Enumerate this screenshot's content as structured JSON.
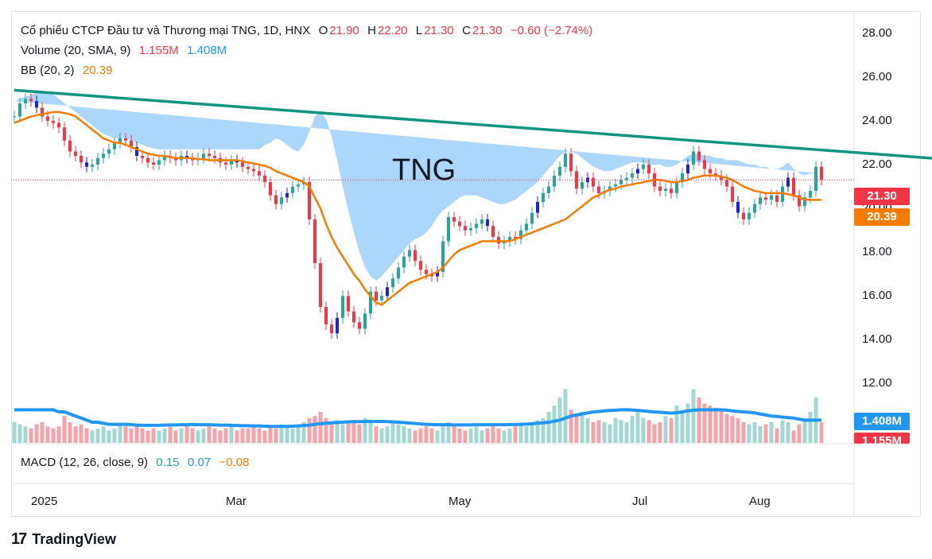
{
  "legend": {
    "title": "Cổ phiếu CTCP Đầu tư và Thương mại TNG, 1D, HNX",
    "o_label": "O",
    "o": "21.90",
    "h_label": "H",
    "h": "22.20",
    "l_label": "L",
    "l": "21.30",
    "c_label": "C",
    "c": "21.30",
    "change": "−0.60 (−2.74%)",
    "volume_label": "Volume (20, SMA, 9)",
    "volume_value": "1.155M",
    "volume_sma": "1.408M",
    "bb_label": "BB (20, 2)",
    "bb_value": "20.39",
    "macd_label": "MACD (12, 26, close, 9)",
    "macd_value": "0.15",
    "macd_signal": "0.07",
    "macd_hist": "−0.08"
  },
  "annotation": "TNG",
  "badges": {
    "last_price": "21.30",
    "bb_basis": "20.39",
    "volume_sma": "1.408M",
    "volume": "1.155M"
  },
  "colors": {
    "up": "#26a69a",
    "down": "#f23645",
    "blue_candle": "#1e22d6",
    "band_fill": "#90caf9",
    "basis": "#f57c00",
    "trendline": "#12957e",
    "volume_sma": "#2196f3"
  },
  "brand": "TradingView",
  "chart_data": {
    "type": "candlestick",
    "symbol": "TNG",
    "y_ticks": [
      "28.00",
      "26.00",
      "24.00",
      "22.00",
      "20.00",
      "18.00",
      "16.00",
      "14.00",
      "12.00"
    ],
    "y_range": [
      11,
      28.5
    ],
    "x_ticks": [
      "2025",
      "Mar",
      "May",
      "Jul",
      "Aug"
    ],
    "x_tick_bars": [
      5,
      40,
      80,
      113,
      134
    ],
    "trendline": {
      "from": [
        0,
        25.4
      ],
      "to": [
        175,
        22.1
      ]
    },
    "close": [
      24.2,
      24.8,
      25.0,
      24.9,
      24.6,
      24.2,
      24.0,
      23.9,
      23.7,
      23.1,
      22.6,
      22.4,
      22.1,
      21.9,
      22.0,
      22.3,
      22.5,
      22.7,
      23.0,
      23.2,
      23.1,
      22.8,
      22.4,
      22.3,
      22.1,
      22.0,
      22.2,
      22.4,
      22.3,
      22.2,
      22.4,
      22.3,
      22.2,
      22.3,
      22.5,
      22.4,
      22.3,
      22.1,
      22.0,
      22.2,
      22.1,
      21.9,
      21.8,
      21.7,
      21.5,
      21.2,
      20.6,
      20.2,
      20.5,
      20.7,
      21.0,
      21.1,
      21.2,
      19.5,
      17.5,
      15.5,
      14.7,
      14.3,
      15.0,
      16.0,
      15.3,
      14.8,
      14.5,
      15.2,
      16.2,
      15.8,
      16.0,
      16.4,
      16.8,
      17.3,
      17.8,
      18.1,
      17.6,
      17.2,
      17.0,
      16.9,
      17.1,
      18.5,
      19.6,
      19.4,
      19.2,
      19.0,
      19.1,
      19.3,
      19.5,
      19.2,
      18.7,
      18.4,
      18.5,
      18.7,
      18.6,
      19.0,
      19.3,
      19.8,
      20.3,
      20.7,
      21.0,
      21.5,
      21.9,
      22.5,
      21.7,
      20.9,
      21.2,
      21.4,
      21.0,
      20.7,
      20.8,
      21.0,
      21.1,
      21.3,
      21.4,
      21.6,
      21.8,
      22.0,
      21.6,
      21.0,
      20.8,
      20.9,
      20.7,
      21.2,
      21.6,
      22.0,
      22.6,
      22.2,
      21.8,
      21.6,
      21.5,
      21.3,
      21.0,
      20.3,
      19.8,
      19.5,
      19.8,
      20.2,
      20.5,
      20.4,
      20.6,
      20.3,
      21.0,
      21.4,
      20.6,
      20.1,
      20.5,
      20.8,
      21.9,
      21.3
    ],
    "volume_scale": "relative",
    "volume": [
      1.0,
      0.9,
      0.8,
      0.7,
      0.9,
      1.0,
      0.8,
      0.7,
      0.8,
      1.3,
      1.0,
      0.8,
      0.9,
      0.7,
      0.6,
      0.7,
      0.8,
      0.6,
      0.7,
      0.9,
      0.8,
      0.7,
      0.8,
      0.7,
      0.6,
      0.7,
      0.6,
      0.7,
      0.8,
      0.6,
      0.7,
      0.8,
      0.7,
      0.6,
      0.7,
      0.8,
      0.7,
      0.6,
      0.7,
      0.8,
      0.6,
      0.7,
      0.7,
      0.8,
      0.7,
      0.6,
      0.8,
      0.7,
      0.9,
      0.8,
      0.7,
      0.9,
      1.0,
      1.2,
      1.3,
      1.5,
      1.2,
      1.0,
      1.1,
      0.9,
      1.0,
      1.1,
      0.9,
      1.2,
      1.0,
      0.8,
      0.7,
      0.8,
      1.0,
      0.9,
      0.8,
      0.7,
      0.6,
      0.7,
      0.8,
      0.7,
      0.6,
      0.9,
      1.0,
      0.8,
      0.7,
      0.6,
      0.7,
      0.8,
      0.6,
      0.7,
      0.8,
      0.7,
      0.6,
      0.7,
      0.8,
      0.9,
      0.8,
      1.0,
      1.1,
      1.2,
      1.5,
      1.8,
      2.2,
      2.6,
      1.6,
      1.3,
      1.5,
      1.2,
      1.0,
      1.1,
      1.0,
      0.9,
      1.2,
      1.1,
      1.0,
      1.3,
      1.6,
      1.2,
      1.1,
      0.9,
      1.0,
      1.3,
      1.2,
      1.8,
      1.5,
      1.9,
      2.6,
      2.2,
      1.9,
      1.8,
      1.7,
      1.6,
      1.4,
      1.3,
      1.2,
      1.0,
      0.9,
      1.0,
      0.8,
      0.9,
      1.0,
      0.7,
      1.1,
      1.0,
      0.6,
      0.9,
      1.2,
      1.5,
      2.2,
      1.0
    ],
    "volume_sma_line": [
      1.6,
      1.6,
      1.6,
      1.6,
      1.6,
      1.6,
      1.6,
      1.6,
      1.5,
      1.5,
      1.4,
      1.3,
      1.2,
      1.1,
      1.0,
      1.0,
      0.95,
      0.9,
      0.9,
      0.9,
      0.9,
      0.88,
      0.86,
      0.85,
      0.85,
      0.85,
      0.85,
      0.86,
      0.87,
      0.87,
      0.88,
      0.88,
      0.89,
      0.88,
      0.88,
      0.88,
      0.87,
      0.86,
      0.86,
      0.85,
      0.84,
      0.83,
      0.83,
      0.82,
      0.82,
      0.81,
      0.8,
      0.8,
      0.8,
      0.8,
      0.81,
      0.82,
      0.84,
      0.86,
      0.9,
      0.93,
      0.95,
      0.97,
      0.99,
      1.0,
      1.02,
      1.03,
      1.03,
      1.04,
      1.04,
      1.04,
      1.04,
      1.03,
      1.02,
      1.0,
      0.98,
      0.96,
      0.94,
      0.92,
      0.9,
      0.89,
      0.88,
      0.88,
      0.88,
      0.87,
      0.87,
      0.87,
      0.87,
      0.88,
      0.88,
      0.88,
      0.88,
      0.88,
      0.88,
      0.89,
      0.89,
      0.9,
      0.91,
      0.93,
      0.95,
      0.97,
      1.0,
      1.05,
      1.1,
      1.2,
      1.3,
      1.35,
      1.4,
      1.45,
      1.5,
      1.52,
      1.55,
      1.57,
      1.58,
      1.6,
      1.6,
      1.59,
      1.57,
      1.55,
      1.52,
      1.5,
      1.48,
      1.46,
      1.44,
      1.46,
      1.5,
      1.55,
      1.58,
      1.6,
      1.6,
      1.6,
      1.6,
      1.6,
      1.58,
      1.55,
      1.52,
      1.5,
      1.48,
      1.45,
      1.4,
      1.35,
      1.3,
      1.28,
      1.25,
      1.22,
      1.2,
      1.15,
      1.1,
      1.1,
      1.1,
      1.1
    ],
    "bb_basis": [
      23.9,
      24.0,
      24.1,
      24.2,
      24.25,
      24.3,
      24.35,
      24.4,
      24.4,
      24.35,
      24.3,
      24.2,
      24.0,
      23.8,
      23.6,
      23.4,
      23.2,
      23.1,
      23.0,
      23.0,
      22.9,
      22.8,
      22.7,
      22.6,
      22.5,
      22.45,
      22.4,
      22.4,
      22.35,
      22.3,
      22.3,
      22.3,
      22.3,
      22.25,
      22.25,
      22.2,
      22.2,
      22.2,
      22.2,
      22.2,
      22.2,
      22.15,
      22.1,
      22.05,
      22.0,
      21.95,
      21.85,
      21.7,
      21.6,
      21.5,
      21.4,
      21.3,
      21.2,
      21.0,
      20.5,
      20.0,
      19.3,
      18.7,
      18.2,
      17.8,
      17.4,
      17.0,
      16.7,
      16.3,
      16.0,
      15.7,
      15.6,
      15.8,
      16.0,
      16.2,
      16.4,
      16.6,
      16.7,
      16.8,
      16.9,
      17.0,
      17.1,
      17.3,
      17.6,
      17.9,
      18.1,
      18.2,
      18.3,
      18.4,
      18.5,
      18.5,
      18.5,
      18.5,
      18.5,
      18.5,
      18.6,
      18.7,
      18.8,
      18.9,
      19.0,
      19.1,
      19.2,
      19.3,
      19.4,
      19.5,
      19.7,
      19.9,
      20.1,
      20.3,
      20.5,
      20.6,
      20.75,
      20.85,
      20.9,
      21.0,
      21.05,
      21.1,
      21.15,
      21.2,
      21.25,
      21.3,
      21.3,
      21.25,
      21.2,
      21.2,
      21.25,
      21.3,
      21.4,
      21.45,
      21.5,
      21.5,
      21.5,
      21.45,
      21.4,
      21.3,
      21.15,
      21.0,
      20.9,
      20.8,
      20.75,
      20.7,
      20.7,
      20.7,
      20.7,
      20.65,
      20.6,
      20.5,
      20.4,
      20.39,
      20.39,
      20.39
    ],
    "bb_upper": [
      24.9,
      25.0,
      25.1,
      25.2,
      25.3,
      25.3,
      25.3,
      25.2,
      25.0,
      24.8,
      24.6,
      24.4,
      24.2,
      24.0,
      23.8,
      23.6,
      23.4,
      23.3,
      23.2,
      23.2,
      23.2,
      23.1,
      23.0,
      22.9,
      22.8,
      22.75,
      22.7,
      22.7,
      22.7,
      22.7,
      22.7,
      22.7,
      22.7,
      22.7,
      22.7,
      22.7,
      22.7,
      22.7,
      22.7,
      22.7,
      22.7,
      22.7,
      22.7,
      22.7,
      22.7,
      22.9,
      23.0,
      23.2,
      23.1,
      22.9,
      22.7,
      22.6,
      22.9,
      23.5,
      24.2,
      24.4,
      24.1,
      23.3,
      22.2,
      21.0,
      19.9,
      18.9,
      18.0,
      17.3,
      16.9,
      16.7,
      16.9,
      17.2,
      17.5,
      17.8,
      18.1,
      18.4,
      18.6,
      18.7,
      18.9,
      19.2,
      19.6,
      19.9,
      20.1,
      20.3,
      20.5,
      20.6,
      20.6,
      20.6,
      20.5,
      20.4,
      20.3,
      20.2,
      20.2,
      20.3,
      20.4,
      20.6,
      20.8,
      21.0,
      21.2,
      21.5,
      21.8,
      22.1,
      22.4,
      22.6,
      22.6,
      22.5,
      22.3,
      22.1,
      21.9,
      21.8,
      21.7,
      21.7,
      21.8,
      21.9,
      22.0,
      22.1,
      22.1,
      22.1,
      22.0,
      22.0,
      22.0,
      21.9,
      21.9,
      22.0,
      22.2,
      22.4,
      22.5,
      22.5,
      22.4,
      22.4,
      22.3,
      22.3,
      22.2,
      22.2,
      22.2,
      22.1,
      22.0,
      22.0,
      21.9,
      21.9,
      21.8,
      21.8,
      21.9,
      22.1,
      21.8,
      21.6,
      21.5,
      21.6,
      21.6,
      21.6
    ],
    "bb_lower": [
      22.7,
      22.8,
      22.8,
      22.9,
      22.9,
      22.9,
      22.8,
      22.8,
      22.7,
      22.6,
      22.5,
      22.3,
      22.1,
      21.9,
      21.6,
      21.5,
      21.5,
      21.5,
      21.5,
      21.6,
      21.7,
      21.8,
      21.8,
      21.8,
      21.8,
      21.85,
      21.9,
      21.9,
      21.9,
      21.95,
      21.9,
      21.9,
      21.9,
      21.9,
      21.8,
      21.75,
      21.7,
      21.7,
      21.6,
      21.6,
      21.5,
      21.5,
      21.4,
      21.2,
      21.0,
      20.8,
      20.5,
      20.1,
      19.7,
      19.0,
      18.2,
      17.2,
      16.0,
      14.5,
      13.2,
      12.5,
      12.1,
      12.0,
      12.2,
      12.6,
      13.1,
      13.7,
      14.3,
      14.7,
      15.2,
      15.4,
      15.7,
      16.0,
      16.2,
      16.4,
      16.6,
      16.7,
      16.8,
      17.0,
      17.2,
      17.3,
      17.5,
      17.7,
      17.9,
      18.0,
      18.0,
      18.0,
      18.0,
      17.9,
      17.8,
      17.7,
      17.6,
      17.5,
      17.5,
      17.4,
      17.3,
      17.2,
      17.1,
      17.1,
      17.1,
      17.2,
      17.4,
      17.8,
      18.4,
      19.0,
      19.6,
      20.0,
      20.2,
      20.3,
      20.4,
      20.4,
      20.4,
      20.4,
      20.4,
      20.4,
      20.3,
      20.3,
      20.4,
      20.5,
      20.5,
      20.4,
      20.3,
      20.2,
      20.1,
      20.0,
      20.0,
      19.9,
      19.9,
      19.9,
      19.8,
      19.7,
      19.6,
      19.5,
      19.4,
      19.3,
      19.2,
      19.1,
      19.0,
      19.0,
      19.0,
      19.1,
      19.0,
      18.9,
      18.9,
      19.0,
      19.1,
      19.1,
      19.1,
      19.1
    ]
  }
}
